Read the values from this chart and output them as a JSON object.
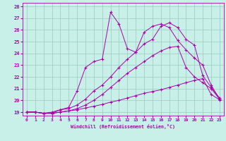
{
  "title": "",
  "xlabel": "Windchill (Refroidissement éolien,°C)",
  "xlim": [
    -0.5,
    23.5
  ],
  "ylim": [
    18.7,
    28.3
  ],
  "yticks": [
    19,
    20,
    21,
    22,
    23,
    24,
    25,
    26,
    27,
    28
  ],
  "xticks": [
    0,
    1,
    2,
    3,
    4,
    5,
    6,
    7,
    8,
    9,
    10,
    11,
    12,
    13,
    14,
    15,
    16,
    17,
    18,
    19,
    20,
    21,
    22,
    23
  ],
  "bg_color": "#c8f0e8",
  "line_color": "#aa00aa",
  "grid_color": "#99ccbb",
  "curves": [
    {
      "x": [
        0,
        1,
        2,
        3,
        4,
        5,
        6,
        7,
        8,
        9,
        10,
        11,
        12,
        13,
        14,
        15,
        16,
        17,
        18,
        19,
        20,
        21,
        22,
        23
      ],
      "y": [
        19.0,
        19.0,
        18.9,
        18.9,
        19.0,
        19.1,
        19.2,
        19.35,
        19.5,
        19.65,
        19.85,
        20.0,
        20.2,
        20.4,
        20.6,
        20.75,
        20.9,
        21.1,
        21.3,
        21.5,
        21.7,
        21.85,
        20.5,
        20.05
      ]
    },
    {
      "x": [
        0,
        1,
        2,
        3,
        4,
        5,
        6,
        7,
        8,
        9,
        10,
        11,
        12,
        13,
        14,
        15,
        16,
        17,
        18,
        19,
        20,
        21,
        22,
        23
      ],
      "y": [
        19.0,
        19.0,
        18.9,
        18.9,
        19.0,
        19.1,
        19.3,
        19.6,
        20.0,
        20.5,
        21.1,
        21.7,
        22.3,
        22.8,
        23.3,
        23.8,
        24.2,
        24.5,
        24.6,
        22.8,
        22.0,
        21.5,
        21.0,
        20.1
      ]
    },
    {
      "x": [
        0,
        1,
        2,
        3,
        4,
        5,
        6,
        7,
        8,
        9,
        10,
        11,
        12,
        13,
        14,
        15,
        16,
        17,
        18,
        19,
        20,
        21,
        22,
        23
      ],
      "y": [
        19.0,
        19.0,
        18.9,
        19.0,
        19.2,
        19.4,
        20.8,
        22.8,
        23.3,
        23.5,
        27.5,
        26.5,
        24.4,
        24.1,
        25.8,
        26.3,
        26.5,
        26.2,
        25.1,
        24.3,
        23.6,
        23.0,
        21.3,
        20.1
      ]
    },
    {
      "x": [
        0,
        1,
        2,
        3,
        4,
        5,
        6,
        7,
        8,
        9,
        10,
        11,
        12,
        13,
        14,
        15,
        16,
        17,
        18,
        19,
        20,
        21,
        22,
        23
      ],
      "y": [
        19.0,
        19.0,
        18.9,
        18.9,
        19.2,
        19.3,
        19.6,
        20.1,
        20.8,
        21.3,
        22.0,
        22.8,
        23.5,
        24.1,
        24.8,
        25.2,
        26.3,
        26.6,
        26.2,
        25.2,
        24.7,
        22.1,
        21.1,
        20.2
      ]
    }
  ]
}
